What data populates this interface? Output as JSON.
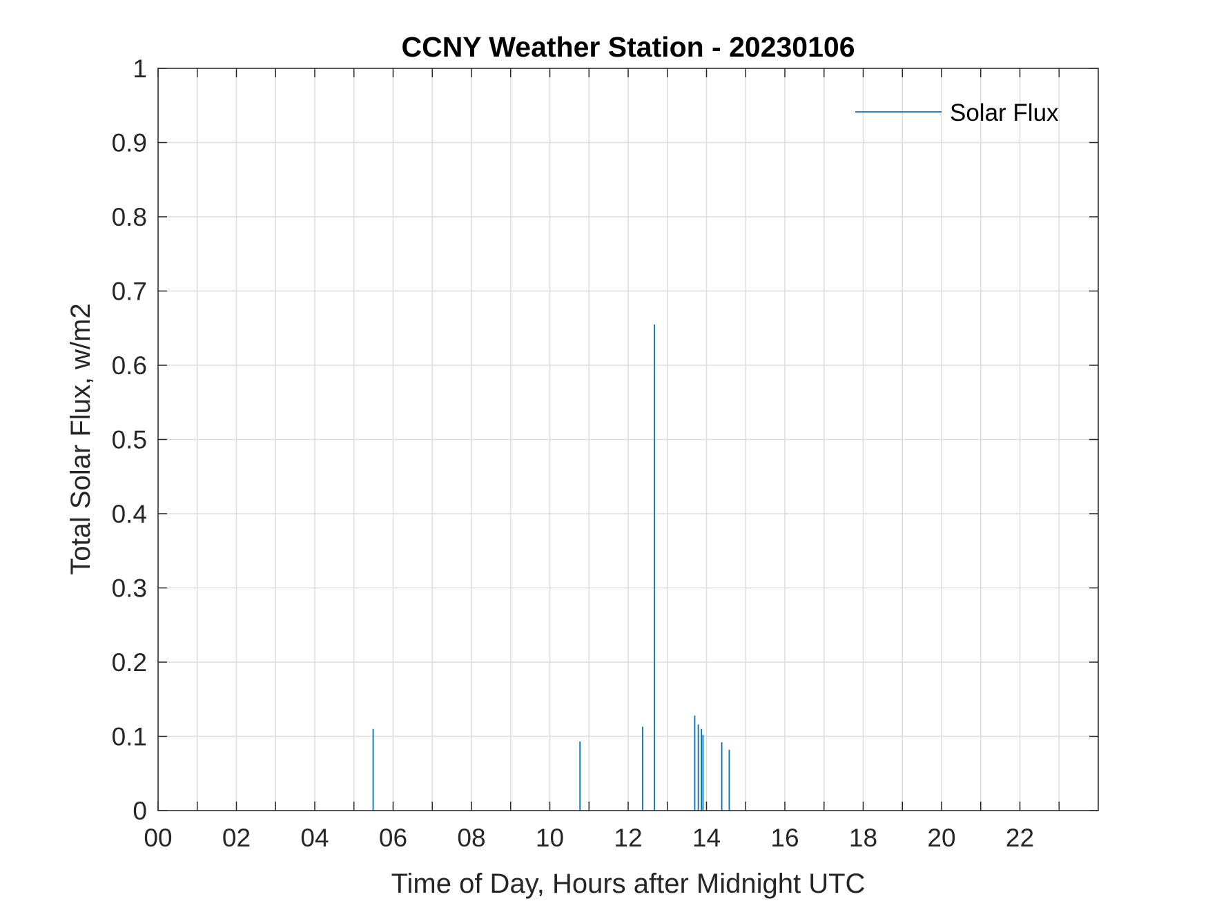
{
  "chart_data": {
    "type": "line",
    "title": "CCNY Weather Station - 20230106",
    "xlabel": "Time of Day, Hours after Midnight UTC",
    "ylabel": "Total Solar Flux, w/m2",
    "xlim": [
      0,
      24
    ],
    "ylim": [
      0,
      1
    ],
    "grid": true,
    "legend_position": "top-right",
    "xticks": [
      0,
      1,
      2,
      3,
      4,
      5,
      6,
      7,
      8,
      9,
      10,
      11,
      12,
      13,
      14,
      15,
      16,
      17,
      18,
      19,
      20,
      21,
      22,
      23
    ],
    "xtick_labels": [
      "00",
      "02",
      "04",
      "06",
      "08",
      "10",
      "12",
      "14",
      "16",
      "18",
      "20",
      "22"
    ],
    "xtick_label_values": [
      0,
      2,
      4,
      6,
      8,
      10,
      12,
      14,
      16,
      18,
      20,
      22
    ],
    "yticks": [
      0,
      0.1,
      0.2,
      0.3,
      0.4,
      0.5,
      0.6,
      0.7,
      0.8,
      0.9,
      1
    ],
    "ytick_labels": [
      "0",
      "0.1",
      "0.2",
      "0.3",
      "0.4",
      "0.5",
      "0.6",
      "0.7",
      "0.8",
      "0.9",
      "1"
    ],
    "series": [
      {
        "name": "Solar Flux",
        "color": "#0072BD",
        "spikes": [
          {
            "x": 5.49,
            "y": 0.11
          },
          {
            "x": 10.77,
            "y": 0.093
          },
          {
            "x": 12.37,
            "y": 0.113
          },
          {
            "x": 12.67,
            "y": 0.655
          },
          {
            "x": 13.7,
            "y": 0.128
          },
          {
            "x": 13.79,
            "y": 0.116
          },
          {
            "x": 13.87,
            "y": 0.11
          },
          {
            "x": 13.91,
            "y": 0.102
          },
          {
            "x": 14.39,
            "y": 0.092
          },
          {
            "x": 14.58,
            "y": 0.082
          }
        ]
      }
    ]
  }
}
